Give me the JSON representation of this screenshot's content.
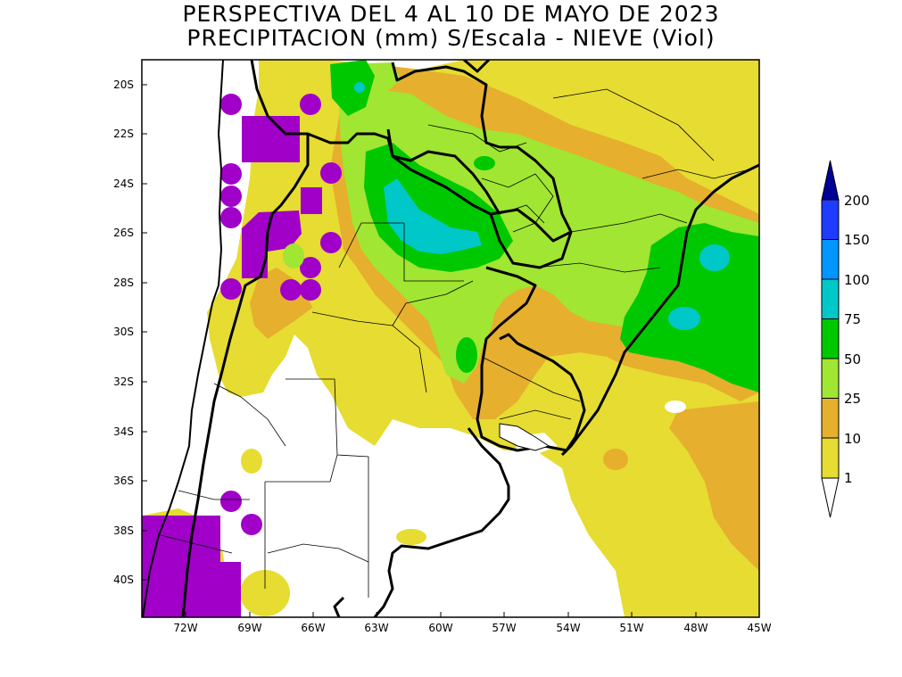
{
  "title": {
    "line1": "PERSPECTIVA DEL 4 AL 10 DE MAYO DE 2023",
    "line2": "PRECIPITACION (mm) S/Escala - NIEVE (Viol)"
  },
  "axes": {
    "lat_ticks": [
      "20S",
      "22S",
      "24S",
      "26S",
      "28S",
      "30S",
      "32S",
      "34S",
      "36S",
      "38S",
      "40S"
    ],
    "lon_ticks": [
      "72W",
      "69W",
      "66W",
      "63W",
      "60W",
      "57W",
      "54W",
      "51W",
      "48W",
      "45W"
    ]
  },
  "legend": {
    "levels": [
      "1",
      "10",
      "25",
      "50",
      "75",
      "100",
      "150",
      "200"
    ],
    "colors": [
      "#e6dc32",
      "#e6af2d",
      "#a0e632",
      "#00c800",
      "#00c8c8",
      "#0096ff",
      "#1e3cff",
      "#000096"
    ],
    "below_color": "#ffffff",
    "snow_color": "#a000c8"
  },
  "colors": {
    "background": "#ffffff",
    "border": "#000000",
    "lvl1": "#e6dc32",
    "lvl10": "#e6af2d",
    "lvl25": "#a0e632",
    "lvl50": "#00c800",
    "lvl75": "#00c8c8",
    "snow": "#a000c8"
  }
}
